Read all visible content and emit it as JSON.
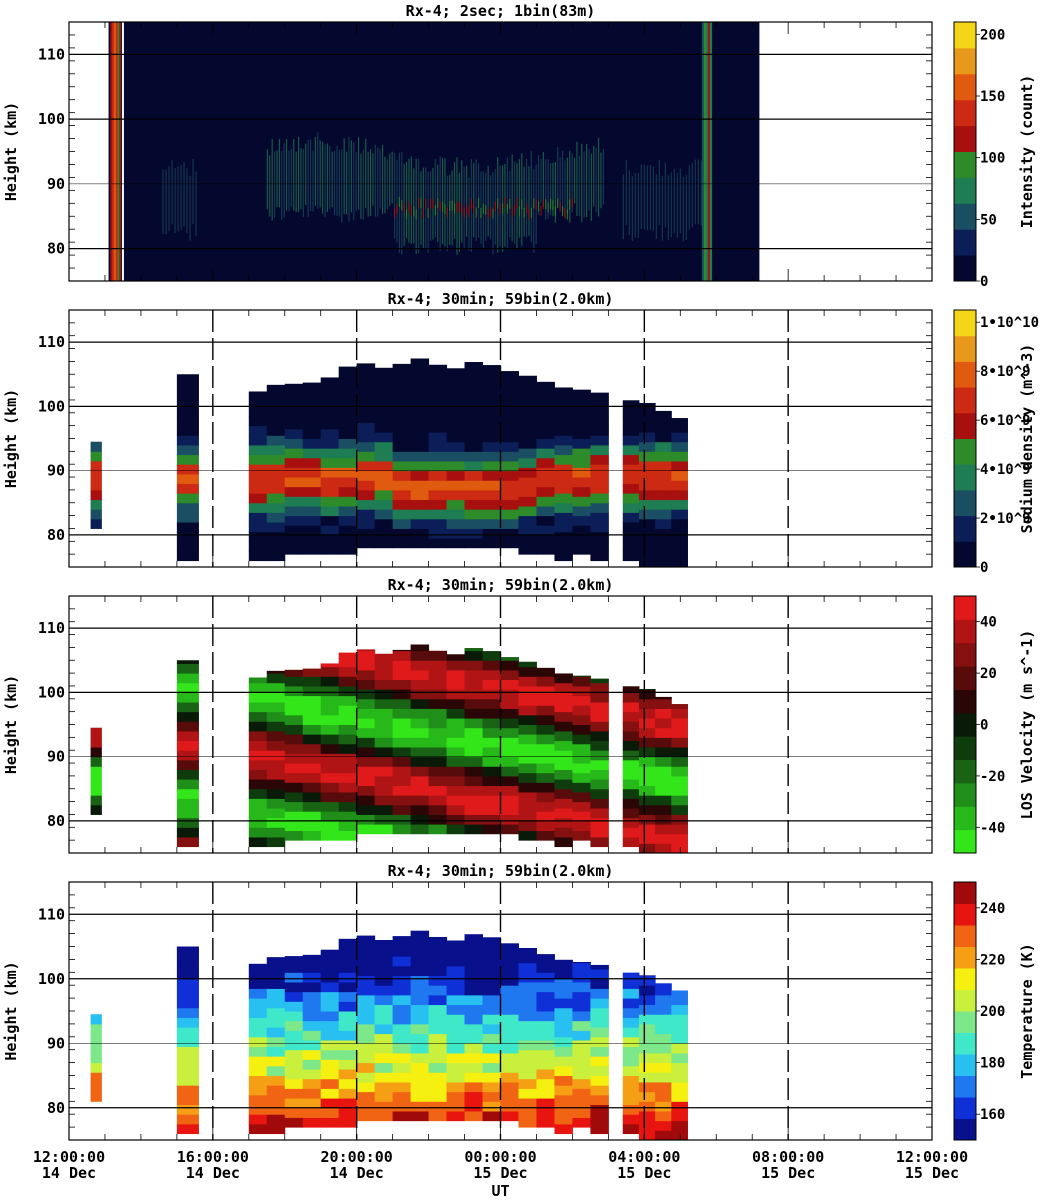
{
  "figure": {
    "xlabel": "UT",
    "x_ticks": [
      {
        "time": "12:00:00",
        "date": "14 Dec"
      },
      {
        "time": "16:00:00",
        "date": "14 Dec"
      },
      {
        "time": "20:00:00",
        "date": "14 Dec"
      },
      {
        "time": "00:00:00",
        "date": "15 Dec"
      },
      {
        "time": "04:00:00",
        "date": "15 Dec"
      },
      {
        "time": "08:00:00",
        "date": "15 Dec"
      },
      {
        "time": "12:00:00",
        "date": "15 Dec"
      }
    ]
  },
  "chart_data": [
    {
      "type": "heatmap",
      "title": "Rx-4;  2sec; 1bin(83m)",
      "ylabel": "Height (km)",
      "ylim": [
        75,
        115
      ],
      "yticks": [
        80,
        90,
        100,
        110
      ],
      "xlim_hours_from_12UT_14Dec": [
        0,
        24
      ],
      "colorbar": {
        "label": "Intensity (count)",
        "range": [
          0,
          210
        ],
        "ticks": [
          "0",
          "50",
          "100",
          "150",
          "200"
        ],
        "colors": [
          "#05082e",
          "#0b1e58",
          "#1a4f63",
          "#1e7d52",
          "#2e8b2a",
          "#a80f0f",
          "#cc2a12",
          "#e05a10",
          "#e8991a",
          "#f5d51a"
        ]
      },
      "segments_hours": [
        [
          1.1,
          1.5
        ],
        [
          1.5,
          19.2
        ]
      ],
      "dashed_vertical_lines": false
    },
    {
      "type": "heatmap",
      "title": "Rx-4; 30min; 59bin(2.0km)",
      "ylabel": "Height (km)",
      "ylim": [
        75,
        115
      ],
      "yticks": [
        80,
        90,
        100,
        110
      ],
      "colorbar": {
        "label": "Sodium density (m^-3)",
        "range": [
          0,
          10500000000.0
        ],
        "ticks": [
          "0",
          "2•10^9",
          "4•10^9",
          "6•10^9",
          "8•10^9",
          "1•10^10"
        ],
        "colors": [
          "#05082e",
          "#0b1e58",
          "#1a4f63",
          "#1e7d52",
          "#2e8b2a",
          "#a80f0f",
          "#cc2a12",
          "#e05a10",
          "#e8991a",
          "#f5d51a"
        ]
      },
      "blocks_hours": [
        [
          0.6,
          0.9
        ],
        [
          3.0,
          3.6
        ],
        [
          5.0,
          15.0
        ],
        [
          15.4,
          17.2
        ]
      ],
      "dashed_vertical_lines": true
    },
    {
      "type": "heatmap",
      "title": "Rx-4; 30min; 59bin(2.0km)",
      "ylabel": "Height (km)",
      "ylim": [
        75,
        115
      ],
      "yticks": [
        80,
        90,
        100,
        110
      ],
      "colorbar": {
        "label": "LOS Velocity (m s^-1)",
        "range": [
          -50,
          50
        ],
        "ticks": [
          "-40",
          "-20",
          "0",
          "20",
          "40"
        ],
        "colors": [
          "#33e61a",
          "#27b81a",
          "#1f8f1a",
          "#196414",
          "#0f3c0d",
          "#0a1a08",
          "#2b0606",
          "#580b0b",
          "#841010",
          "#b01414",
          "#e01a1a"
        ]
      },
      "blocks_hours": [
        [
          0.6,
          0.9
        ],
        [
          3.0,
          3.6
        ],
        [
          5.0,
          15.0
        ],
        [
          15.4,
          17.2
        ]
      ],
      "dashed_vertical_lines": true
    },
    {
      "type": "heatmap",
      "title": "Rx-4; 30min; 59bin(2.0km)",
      "ylabel": "Height (km)",
      "ylim": [
        75,
        115
      ],
      "yticks": [
        80,
        90,
        100,
        110
      ],
      "colorbar": {
        "label": "Temperature (K)",
        "range": [
          150,
          250
        ],
        "ticks": [
          "160",
          "180",
          "200",
          "220",
          "240"
        ],
        "colors": [
          "#08108c",
          "#0f30d6",
          "#1f78f0",
          "#28c0f0",
          "#3ee8c8",
          "#7de88a",
          "#c8f03c",
          "#f5f00f",
          "#f5a014",
          "#f06414",
          "#e8140f",
          "#a00a0a"
        ]
      },
      "blocks_hours": [
        [
          0.6,
          0.9
        ],
        [
          3.0,
          3.6
        ],
        [
          5.0,
          15.0
        ],
        [
          15.4,
          17.2
        ]
      ],
      "dashed_vertical_lines": true
    }
  ]
}
